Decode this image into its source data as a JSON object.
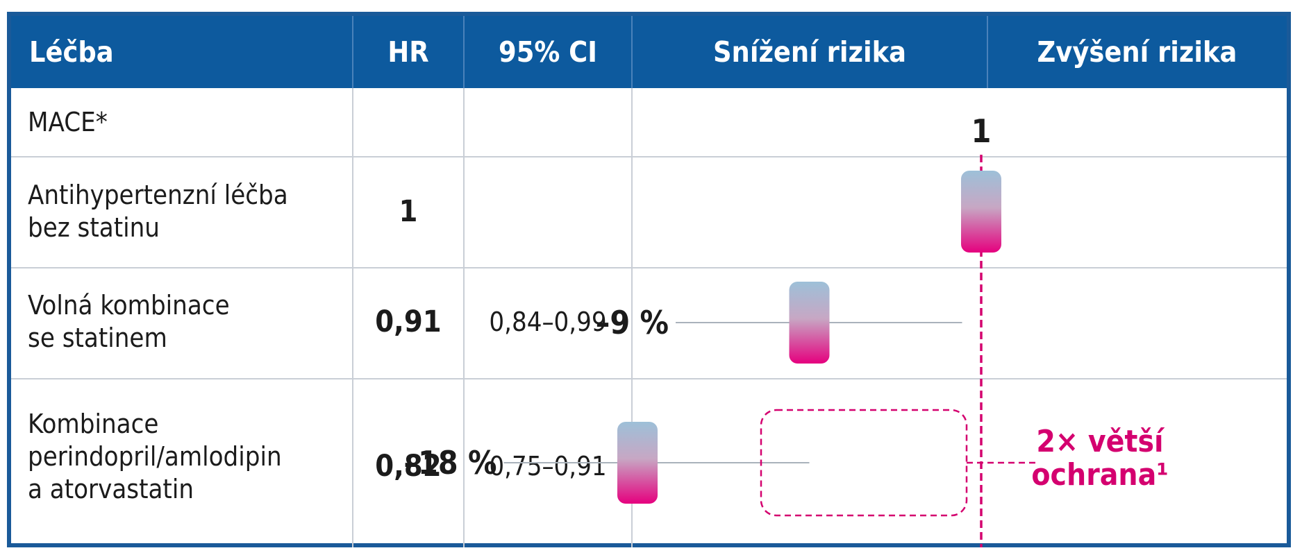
{
  "headers": {
    "treatment": "Léčba",
    "hr": "HR",
    "ci": "95% CI",
    "decrease": "Snížení rizika",
    "increase": "Zvýšení rizika"
  },
  "rows": [
    {
      "label_lines": [
        "MACE*"
      ],
      "hr": "",
      "ci": ""
    },
    {
      "label_lines": [
        "Antihypertenzní léčba",
        "bez statinu"
      ],
      "hr": "1",
      "ci": ""
    },
    {
      "label_lines": [
        "Volná kombinace",
        "se statinem"
      ],
      "hr": "0,91",
      "ci": "0,84–0,99"
    },
    {
      "label_lines": [
        "Kombinace",
        "perindopril/amlodipin",
        "a atorvastatin"
      ],
      "hr": "0,82",
      "ci": "0,75–0,91"
    }
  ],
  "chart_data": {
    "type": "forest",
    "reference_label": "1",
    "reference_value": 1,
    "points": [
      {
        "row": 1,
        "hr": 1,
        "ci_low": null,
        "ci_high": null,
        "label": ""
      },
      {
        "row": 2,
        "hr": 0.91,
        "ci_low": 0.84,
        "ci_high": 0.99,
        "label": "–9 %"
      },
      {
        "row": 3,
        "hr": 0.82,
        "ci_low": 0.75,
        "ci_high": 0.91,
        "label": "–18 %"
      }
    ],
    "callout": [
      "2× větší",
      "ochrana¹"
    ],
    "colors": {
      "marker_top": "#9dc0d8",
      "marker_bottom": "#e5007e",
      "reference_line": "#d4006f",
      "callout_text": "#d4006f"
    }
  },
  "colors": {
    "header_bg": "#0d5a9e",
    "frame": "#1a5a99",
    "grid": "#c9ced6"
  }
}
